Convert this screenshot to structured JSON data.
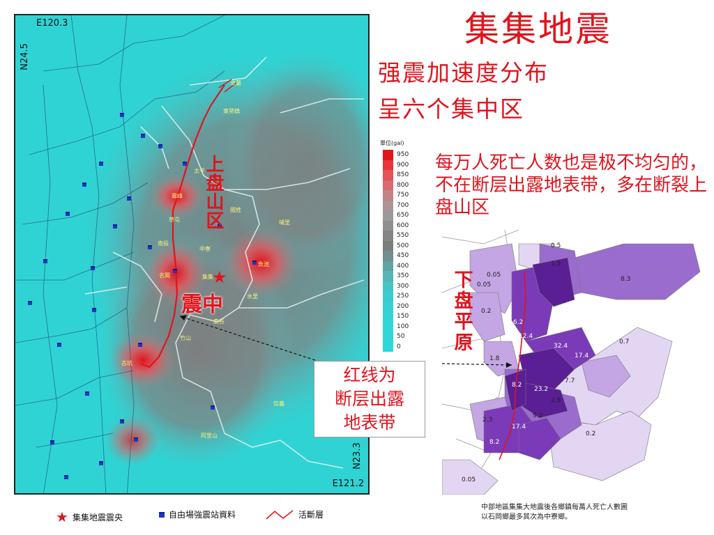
{
  "title": "集集地震",
  "subtitle_lines": [
    "强震加速度分布",
    "呈六个集中区"
  ],
  "note": "每万人死亡人数也是极不均匀的，不在断层出露地表带，多在断裂上盘山区",
  "left_map": {
    "coords": {
      "top_left": "E120.3",
      "top_lat": "N24.5",
      "bottom_right": "E121.2",
      "bottom_lat": "N23.3"
    },
    "hanging_wall_label": "上盘山区",
    "epicenter_label": "震中",
    "towns": [
      "卓蘭",
      "東勢鎮",
      "太平",
      "霧峰",
      "草屯",
      "國姓",
      "埔里",
      "南投",
      "中寮",
      "集集",
      "名間",
      "水里",
      "魚池",
      "竹山",
      "古坑",
      "信義",
      "阿里山",
      "鹿谷"
    ],
    "colors": {
      "background": "#2fd3d3",
      "fault_line": "#e0141e",
      "hotspot": "#e4232a",
      "town_text": "#f7f27a",
      "station": "#1838c8"
    }
  },
  "scale": {
    "title": "單位(gal)",
    "levels": [
      "950",
      "900",
      "850",
      "800",
      "750",
      "700",
      "650",
      "600",
      "550",
      "500",
      "450",
      "400",
      "350",
      "300",
      "250",
      "200",
      "150",
      "100",
      "50",
      "0"
    ],
    "colors": [
      "#e4141c",
      "#e8343a",
      "#e65358",
      "#d86c72",
      "#c28386",
      "#ad9497",
      "#9a9a9a",
      "#8f8f8f",
      "#858585",
      "#7b7e7e",
      "#6f8f90",
      "#62a3a4",
      "#55b5b7",
      "#46c3c5",
      "#3acdcf",
      "#35d1d3",
      "#33d4d6",
      "#31d6d8",
      "#2fd7d9",
      "#2dd8da"
    ]
  },
  "right_map": {
    "footwall_label": "下盘平原",
    "rates": [
      "0.5",
      "1.5",
      "0.05",
      "0.05",
      "8.3",
      "0.2",
      "6.2",
      "12.4",
      "0.7",
      "1.8",
      "32.4",
      "17.4",
      "8.2",
      "7.7",
      "23.2",
      "2.9",
      "2.3",
      "9.2",
      "17.4",
      "8.2",
      "0.2",
      "0.05"
    ],
    "caption_lines": [
      "中部地區集集大地震後各鄉鎮每萬人死亡人數圖",
      "以石岡鄉最多其次為中寮鄉。"
    ],
    "colors": {
      "darkest": "#5a1e95",
      "dark": "#7b3bb8",
      "mid": "#9a6ccd",
      "light": "#c3a6e3",
      "lightest": "#e3d6f3",
      "fault_line": "#e0141e"
    }
  },
  "callout": {
    "lines": [
      "红线为",
      "断层出露",
      "地表带"
    ]
  },
  "legend": {
    "epicenter": "集集地震震央",
    "station": "自由場強震站資料",
    "fault": "活斷層"
  }
}
